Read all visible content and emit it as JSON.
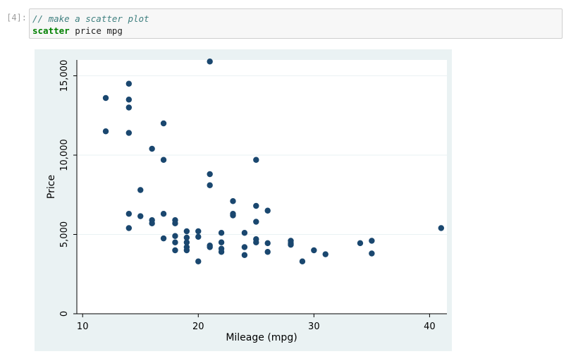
{
  "cell": {
    "prompt": "[4]:",
    "comment": "// make a scatter plot",
    "command_keyword": "scatter",
    "command_args": " price mpg"
  },
  "colors": {
    "outer_bg": "#eaf2f3",
    "plot_bg": "#ffffff",
    "marker": "#1a476f",
    "grid": "#eaf2f3",
    "axis": "#000000"
  },
  "chart_data": {
    "type": "scatter",
    "xlabel": "Mileage (mpg)",
    "ylabel": "Price",
    "xlim": [
      9.5,
      41.5
    ],
    "ylim": [
      0,
      16000
    ],
    "x_ticks": [
      10,
      20,
      30,
      40
    ],
    "x_tick_labels": [
      "10",
      "20",
      "30",
      "40"
    ],
    "y_ticks": [
      0,
      5000,
      10000,
      15000
    ],
    "y_tick_labels": [
      "0",
      "5,000",
      "10,000",
      "15,000"
    ],
    "grid": "horizontal",
    "series": [
      {
        "points": [
          [
            12,
            13600
          ],
          [
            12,
            11500
          ],
          [
            14,
            14500
          ],
          [
            14,
            13500
          ],
          [
            14,
            13000
          ],
          [
            14,
            11400
          ],
          [
            14,
            6300
          ],
          [
            14,
            5400
          ],
          [
            15,
            7800
          ],
          [
            15,
            6150
          ],
          [
            16,
            10400
          ],
          [
            16,
            5900
          ],
          [
            16,
            5700
          ],
          [
            17,
            12000
          ],
          [
            17,
            9700
          ],
          [
            17,
            6300
          ],
          [
            17,
            4750
          ],
          [
            18,
            5900
          ],
          [
            18,
            5700
          ],
          [
            18,
            4900
          ],
          [
            18,
            4500
          ],
          [
            18,
            4000
          ],
          [
            19,
            5200
          ],
          [
            19,
            4800
          ],
          [
            19,
            4500
          ],
          [
            19,
            4200
          ],
          [
            19,
            4000
          ],
          [
            20,
            5200
          ],
          [
            20,
            4850
          ],
          [
            20,
            3300
          ],
          [
            21,
            15900
          ],
          [
            21,
            8800
          ],
          [
            21,
            8100
          ],
          [
            21,
            4300
          ],
          [
            21,
            4200
          ],
          [
            22,
            5100
          ],
          [
            22,
            4500
          ],
          [
            22,
            4100
          ],
          [
            22,
            3900
          ],
          [
            23,
            7100
          ],
          [
            23,
            6300
          ],
          [
            23,
            6200
          ],
          [
            24,
            5100
          ],
          [
            24,
            4200
          ],
          [
            24,
            3700
          ],
          [
            25,
            9700
          ],
          [
            25,
            6800
          ],
          [
            25,
            5800
          ],
          [
            25,
            4700
          ],
          [
            25,
            4500
          ],
          [
            26,
            6500
          ],
          [
            26,
            4450
          ],
          [
            26,
            3900
          ],
          [
            28,
            4600
          ],
          [
            28,
            4450
          ],
          [
            28,
            4350
          ],
          [
            29,
            3300
          ],
          [
            30,
            4000
          ],
          [
            31,
            3750
          ],
          [
            34,
            4450
          ],
          [
            35,
            4600
          ],
          [
            35,
            3800
          ],
          [
            41,
            5400
          ]
        ]
      }
    ]
  }
}
